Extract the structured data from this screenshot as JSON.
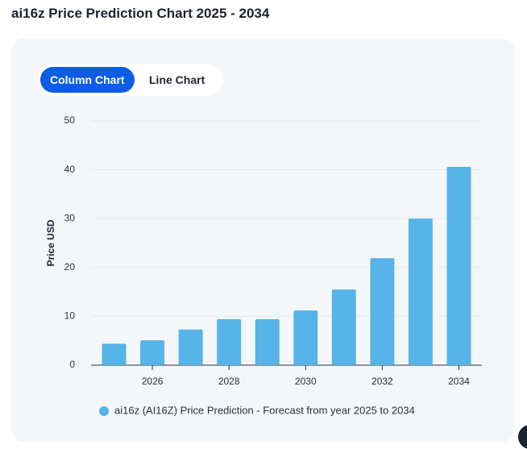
{
  "header": {
    "title": "ai16z Price Prediction Chart 2025 - 2034"
  },
  "tabs": [
    "Column Chart",
    "Line Chart"
  ],
  "chart_data": {
    "type": "bar",
    "x": [
      2025,
      2026,
      2027,
      2028,
      2029,
      2030,
      2031,
      2032,
      2033,
      2034
    ],
    "series": [
      {
        "name": "ai16z (AI16Z) Price Prediction - Forecast from year 2025 to 2034",
        "color": "#56b4e9",
        "values": [
          4.4,
          5.1,
          7.3,
          9.4,
          9.4,
          11.2,
          15.5,
          21.9,
          30.0,
          40.6
        ]
      }
    ],
    "xlim": [
      2024.4,
      2034.6
    ],
    "xticks": [
      2026,
      2028,
      2030,
      2032,
      2034
    ],
    "ylim": [
      0,
      50
    ],
    "yticks": [
      0,
      10,
      20,
      30,
      40,
      50
    ],
    "ylabel": "Price USD",
    "grid": true,
    "legend": "bottom"
  }
}
